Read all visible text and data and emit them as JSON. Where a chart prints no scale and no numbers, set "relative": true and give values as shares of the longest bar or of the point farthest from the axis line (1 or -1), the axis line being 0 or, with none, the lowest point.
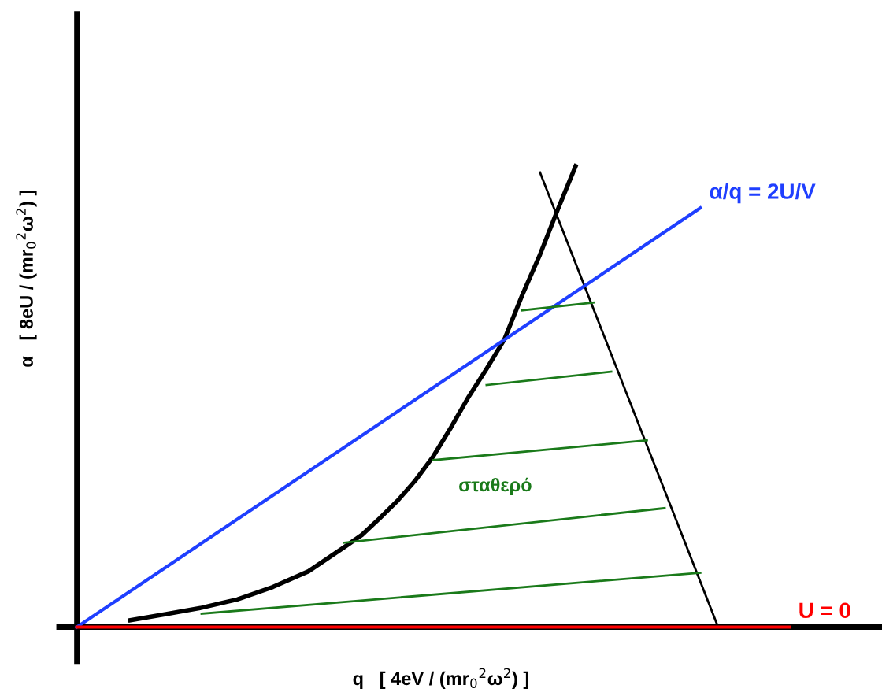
{
  "chart_data": {
    "type": "line",
    "relative": true,
    "xlabel": "q   [ 4eV / (mr$_{0}$$^{2}$ω$^{2}$) ]",
    "ylabel": "α   [ 8eU / (mr$_{0}$$^{2}$ω$^{2}$) ]",
    "categories": [
      null,
      null,
      null,
      null,
      null,
      null,
      null,
      null,
      null,
      null,
      null,
      null,
      null,
      null,
      null,
      null,
      null,
      null,
      null,
      null,
      null,
      null,
      null,
      null,
      null,
      null,
      null,
      null,
      null,
      null,
      null,
      null,
      null,
      null,
      null,
      null,
      null,
      null,
      null,
      null,
      null,
      null,
      null,
      null,
      null,
      null
    ],
    "series": [
      {
        "color": "#000000",
        "values": [
          null,
          null,
          null,
          0.015,
          null,
          0.028,
          null,
          0.042,
          null,
          0.06,
          null,
          0.087,
          null,
          0.121,
          null,
          0.173,
          0.2,
          0.236,
          0.274,
          0.318,
          0.37,
          0.433,
          0.5,
          0.56,
          0.624,
          0.72,
          0.808,
          0.906,
          1.0,
          null,
          null,
          null,
          null,
          null,
          null,
          null,
          null,
          null,
          null,
          null,
          null,
          null,
          null,
          null,
          null,
          null
        ]
      },
      {
        "color": "#000000",
        "values": [
          null,
          null,
          null,
          null,
          null,
          null,
          null,
          null,
          null,
          null,
          null,
          null,
          null,
          null,
          null,
          null,
          null,
          null,
          null,
          null,
          null,
          null,
          null,
          null,
          null,
          null,
          0.986,
          null,
          null,
          null,
          null,
          null,
          null,
          null,
          null,
          null,
          0,
          null,
          null,
          null,
          null,
          null,
          null,
          null,
          null,
          null
        ]
      },
      {
        "name": "α/q = 2U/V",
        "color": "#1f3fff",
        "values": [
          0,
          null,
          null,
          null,
          null,
          null,
          null,
          null,
          null,
          null,
          null,
          null,
          null,
          null,
          null,
          null,
          null,
          null,
          null,
          null,
          null,
          null,
          null,
          null,
          null,
          null,
          null,
          null,
          null,
          null,
          null,
          null,
          null,
          null,
          null,
          0.909,
          null,
          null,
          null,
          null,
          null,
          null,
          null,
          null,
          null,
          null
        ]
      },
      {
        "name": "U = 0",
        "color": "#ff0000",
        "values": [
          0,
          null,
          null,
          null,
          null,
          null,
          null,
          null,
          null,
          null,
          null,
          null,
          null,
          null,
          null,
          null,
          null,
          null,
          null,
          null,
          null,
          null,
          null,
          null,
          null,
          null,
          null,
          null,
          null,
          null,
          null,
          null,
          null,
          null,
          null,
          null,
          null,
          null,
          null,
          null,
          0,
          null,
          null,
          null,
          null,
          null
        ]
      },
      {
        "color": "#1a7a1a",
        "values": [
          null,
          null,
          null,
          null,
          null,
          null,
          null,
          0.029,
          null,
          null,
          null,
          null,
          null,
          null,
          null,
          null,
          null,
          null,
          null,
          null,
          null,
          null,
          null,
          null,
          null,
          null,
          null,
          null,
          null,
          null,
          null,
          null,
          null,
          null,
          null,
          0.118,
          null,
          null,
          null,
          null,
          null,
          null,
          null,
          null,
          null,
          null
        ]
      },
      {
        "color": "#1a7a1a",
        "values": [
          null,
          null,
          null,
          null,
          null,
          null,
          null,
          null,
          null,
          null,
          null,
          null,
          null,
          null,
          null,
          0.183,
          null,
          null,
          null,
          null,
          null,
          null,
          null,
          null,
          null,
          null,
          null,
          null,
          null,
          null,
          null,
          null,
          null,
          0.258,
          null,
          null,
          null,
          null,
          null,
          null,
          null,
          null,
          null,
          null,
          null,
          null
        ]
      },
      {
        "color": "#1a7a1a",
        "values": [
          null,
          null,
          null,
          null,
          null,
          null,
          null,
          null,
          null,
          null,
          null,
          null,
          null,
          null,
          null,
          null,
          null,
          null,
          null,
          null,
          0.362,
          null,
          null,
          null,
          null,
          null,
          null,
          null,
          null,
          null,
          null,
          null,
          0.405,
          null,
          null,
          null,
          null,
          null,
          null,
          null,
          null,
          null,
          null,
          null,
          null,
          null
        ]
      },
      {
        "color": "#1a7a1a",
        "values": [
          null,
          null,
          null,
          null,
          null,
          null,
          null,
          null,
          null,
          null,
          null,
          null,
          null,
          null,
          null,
          null,
          null,
          null,
          null,
          null,
          null,
          null,
          null,
          0.525,
          null,
          null,
          null,
          null,
          null,
          null,
          0.554,
          null,
          null,
          null,
          null,
          null,
          null,
          null,
          null,
          null,
          null,
          null,
          null,
          null,
          null,
          null
        ]
      },
      {
        "color": "#1a7a1a",
        "values": [
          null,
          null,
          null,
          null,
          null,
          null,
          null,
          null,
          null,
          null,
          null,
          null,
          null,
          null,
          null,
          null,
          null,
          null,
          null,
          null,
          null,
          null,
          null,
          null,
          null,
          0.687,
          null,
          null,
          null,
          0.704,
          null,
          null,
          null,
          null,
          null,
          null,
          null,
          null,
          null,
          null,
          null,
          null,
          null,
          null,
          null,
          null
        ]
      }
    ],
    "annotations": [
      "σταθερό"
    ]
  }
}
